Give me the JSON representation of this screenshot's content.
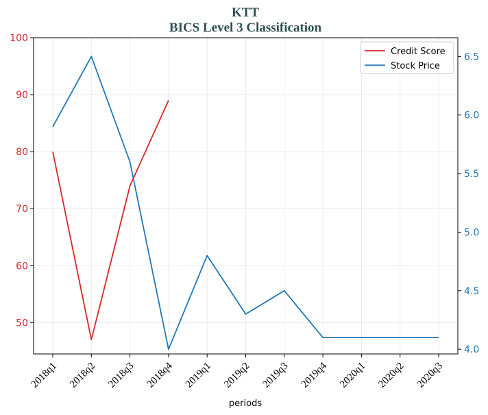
{
  "chart_data": {
    "type": "line",
    "title": "KTT",
    "subtitle": "BICS Level 3 Classification",
    "xlabel": "periods",
    "categories": [
      "2018q1",
      "2018q2",
      "2018q3",
      "2018q4",
      "2019q1",
      "2019q2",
      "2019q3",
      "2019q4",
      "2020q1",
      "2020q2",
      "2020q3"
    ],
    "left_axis": {
      "ylim": [
        44.5,
        100
      ],
      "ticks": [
        50,
        60,
        70,
        80,
        90,
        100
      ],
      "color": "#d62728"
    },
    "right_axis": {
      "ylim": [
        3.96,
        6.66
      ],
      "ticks": [
        "4.0",
        "4.5",
        "5.0",
        "5.5",
        "6.0",
        "6.5"
      ],
      "color": "#1f77b4"
    },
    "grid": true,
    "legend_position": "top-right",
    "series": [
      {
        "name": "Credit Score",
        "axis": "left",
        "color": "#d62728",
        "values": [
          80,
          47,
          74,
          89,
          null,
          null,
          null,
          null,
          null,
          null,
          null
        ]
      },
      {
        "name": "Stock Price",
        "axis": "right",
        "color": "#1f77b4",
        "values": [
          5.9,
          6.5,
          5.6,
          4.0,
          4.8,
          4.3,
          4.5,
          4.1,
          4.1,
          4.1,
          4.1
        ]
      }
    ]
  }
}
